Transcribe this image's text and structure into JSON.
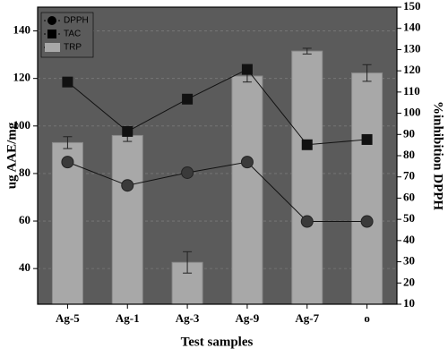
{
  "chart_data": {
    "type": "combo",
    "x_label": "Test samples",
    "y_label": "ug AAE/mg",
    "y2_label": "%inhibition DPPH",
    "categories": [
      "Ag-5",
      "Ag-1",
      "Ag-3",
      "Ag-9",
      "Ag-7",
      "o"
    ],
    "ylim": [
      25,
      150
    ],
    "yticks": [
      40,
      60,
      80,
      100,
      120,
      140
    ],
    "y2lim": [
      10,
      150
    ],
    "y2ticks": [
      10,
      20,
      30,
      40,
      50,
      60,
      70,
      80,
      90,
      100,
      110,
      120,
      130,
      140,
      150
    ],
    "grid": true,
    "legend": "upper left",
    "background": "#5b5b5b",
    "series": [
      {
        "name": "DPPH",
        "type": "line",
        "marker": "circle",
        "axis": "y2",
        "color": "#3a3a3a",
        "values": [
          77,
          66,
          72,
          77,
          49,
          49
        ]
      },
      {
        "name": "TAC",
        "type": "line",
        "marker": "square",
        "color": "#111111",
        "values": [
          118.5,
          97.7,
          111.3,
          123.8,
          92.1,
          94.3
        ]
      },
      {
        "name": "TRP",
        "type": "bar",
        "color": "#a8a8a8",
        "values": [
          93,
          96,
          42.6,
          121,
          131.5,
          122.3
        ],
        "errors": [
          2.5,
          2.5,
          4.5,
          2.5,
          1.2,
          3.5
        ]
      }
    ]
  }
}
